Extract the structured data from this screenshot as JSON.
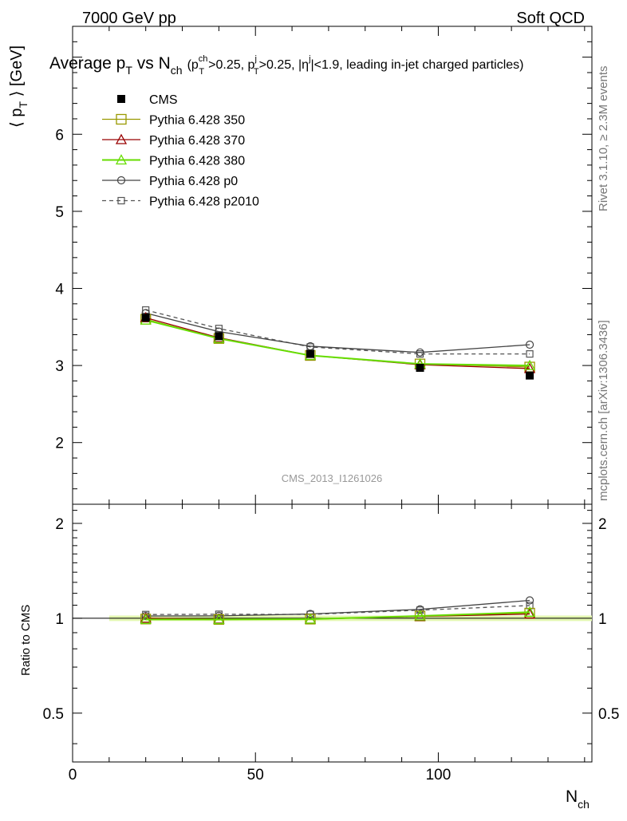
{
  "header": {
    "left": "7000 GeV pp",
    "right": "Soft QCD",
    "title_main": "Average p",
    "title_sub_t": "T",
    "title_vs": " vs N",
    "title_sub_ch": "ch",
    "title_cuts": "(p",
    "cut1_sup": "ch",
    "cut1_sub": "T",
    "cut1_val": ">0.25, p",
    "cut2_sup": "j",
    "cut2_sub": "T",
    "cut2_val": ">0.25, |η",
    "cut3_sup": "j",
    "cut3_val": "|<1.9, leading in-jet charged particles)"
  },
  "side_text": {
    "rivet": "Rivet 3.1.10, ≥ 2.3M events",
    "mcplots": "mcplots.cern.ch [arXiv:1306.3436]"
  },
  "watermark": "CMS_2013_I1261026",
  "axes": {
    "ylabel_main": "⟨ p",
    "ylabel_sub": "T",
    "ylabel_tail": " ⟩ [GeV]",
    "ratio_ylabel": "Ratio to CMS",
    "xlabel": "N",
    "xlabel_sub": "ch"
  },
  "legend": [
    {
      "label": "CMS",
      "marker": "filled-square",
      "color": "#000000",
      "dash": false
    },
    {
      "label": "Pythia 6.428 350",
      "marker": "open-square",
      "color": "#999900",
      "dash": false
    },
    {
      "label": "Pythia 6.428 370",
      "marker": "open-triangle",
      "color": "#990000",
      "dash": false
    },
    {
      "label": "Pythia 6.428 380",
      "marker": "open-triangle",
      "color": "#66dd00",
      "dash": false
    },
    {
      "label": "Pythia 6.428 p0",
      "marker": "open-circle",
      "color": "#444444",
      "dash": false
    },
    {
      "label": "Pythia 6.428 p2010",
      "marker": "open-square-small",
      "color": "#555555",
      "dash": true
    }
  ],
  "chart_data": {
    "type": "line",
    "x": [
      20,
      40,
      65,
      95,
      125
    ],
    "xlim": [
      0,
      142
    ],
    "ylim": [
      1.2,
      7.4
    ],
    "ratio_ylim": [
      0.35,
      2.3
    ],
    "ratio_log": true,
    "xticks": [
      0,
      50,
      100
    ],
    "yticks": [
      2,
      3,
      4,
      5,
      6
    ],
    "ratio_yticks": [
      0.5,
      1,
      2
    ],
    "series": [
      {
        "name": "CMS",
        "values": [
          3.62,
          3.38,
          3.15,
          2.97,
          2.87
        ]
      },
      {
        "name": "Pythia 6.428 350",
        "values": [
          3.6,
          3.35,
          3.13,
          3.02,
          2.98
        ]
      },
      {
        "name": "Pythia 6.428 370",
        "values": [
          3.62,
          3.36,
          3.13,
          3.01,
          2.96
        ]
      },
      {
        "name": "Pythia 6.428 380",
        "values": [
          3.59,
          3.35,
          3.13,
          3.02,
          3.0
        ]
      },
      {
        "name": "Pythia 6.428 p0",
        "values": [
          3.68,
          3.44,
          3.25,
          3.17,
          3.27
        ]
      },
      {
        "name": "Pythia 6.428 p2010",
        "values": [
          3.72,
          3.48,
          3.24,
          3.15,
          3.15
        ]
      }
    ]
  }
}
